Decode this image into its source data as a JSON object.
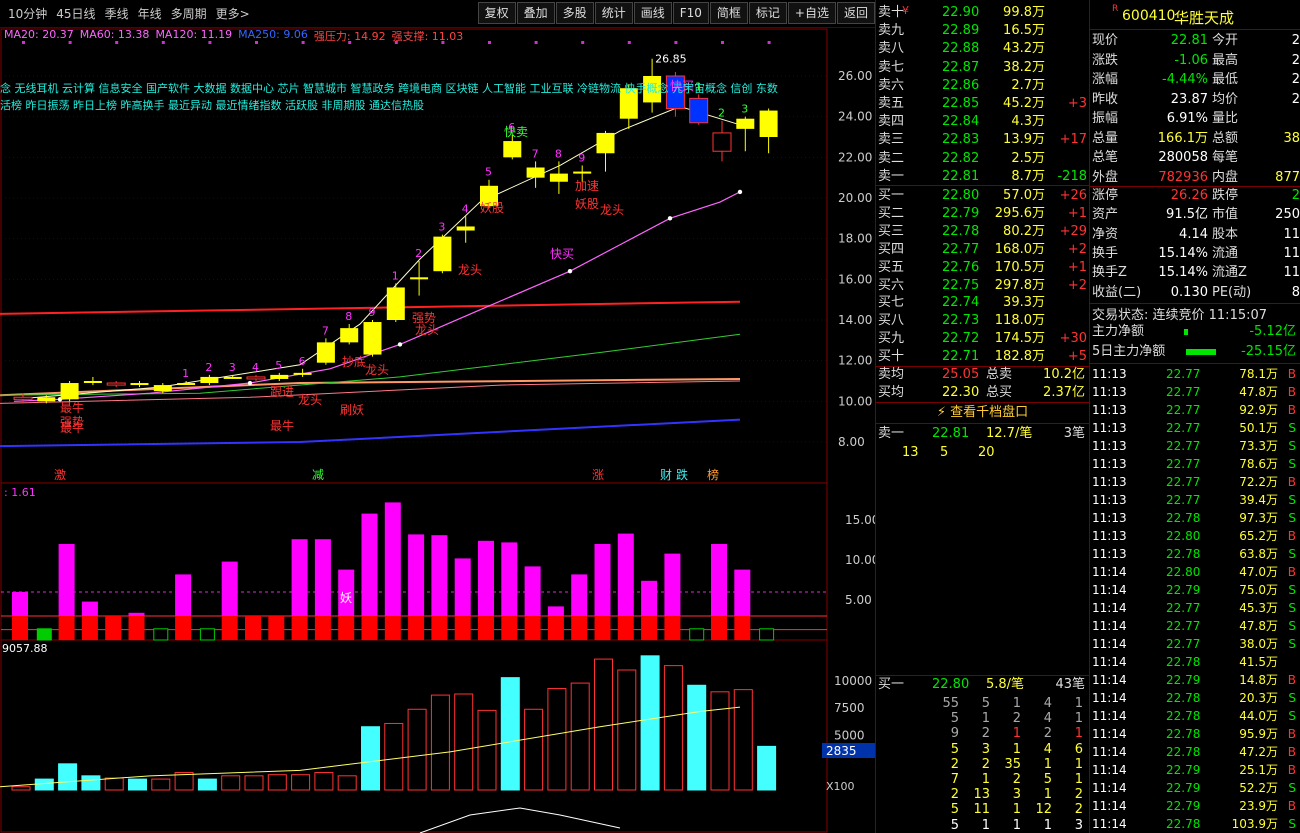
{
  "toolbar": {
    "periods": [
      "10分钟",
      "45日线",
      "季线",
      "年线",
      "多周期",
      "更多>"
    ],
    "buttons": [
      "复权",
      "叠加",
      "多股",
      "统计",
      "画线",
      "F10",
      "简框",
      "标记",
      "+自选",
      "返回"
    ]
  },
  "ma_legend": [
    {
      "t": "MA20: 20.37",
      "c": "#ff66ff"
    },
    {
      "t": "MA60: 13.38",
      "c": "#ff66ff"
    },
    {
      "t": "MA120: 11.19",
      "c": "#ff66ff"
    },
    {
      "t": "MA250: 9.06",
      "c": "#3366ff"
    },
    {
      "t": "强压力: 14.92",
      "c": "#ff4444"
    },
    {
      "t": "强支撑: 11.03",
      "c": "#ff4444"
    }
  ],
  "concepts_1": "念 无线耳机 云计算 信息安全 国产软件 大数据 数据中心 芯片 智慧城市 智慧政务 跨境电商 区块链 人工智能 工业互联 冷链物流 快手概念 元宇宙概念 信创 东数",
  "concepts_2": "活榜 昨日振荡 昨日上榜 昨高换手 最近异动 最近情绪指数 活跃股 非周期股 通达信热股",
  "price_axis": [
    "26.00",
    "24.00",
    "22.00",
    "20.00",
    "18.00",
    "16.00",
    "14.00",
    "12.00",
    "10.00",
    "8.00"
  ],
  "high_label": "26.85",
  "annotations": [
    {
      "t": "快卖",
      "c": "#3f3"
    },
    {
      "t": "快买",
      "c": "#f3f"
    },
    {
      "t": "妖股",
      "c": "#f33"
    },
    {
      "t": "加速",
      "c": "#f33"
    },
    {
      "t": "妖股",
      "c": "#f33"
    },
    {
      "t": "龙头",
      "c": "#f33"
    },
    {
      "t": "龙头",
      "c": "#f33"
    },
    {
      "t": "强势",
      "c": "#f33"
    },
    {
      "t": "龙头",
      "c": "#f33"
    },
    {
      "t": "抄底",
      "c": "#f33"
    },
    {
      "t": "龙头",
      "c": "#f33"
    },
    {
      "t": "跟进",
      "c": "#f33"
    },
    {
      "t": "龙头",
      "c": "#f33"
    },
    {
      "t": "刷妖",
      "c": "#f33"
    },
    {
      "t": "最牛",
      "c": "#f33"
    },
    {
      "t": "最牛",
      "c": "#f33"
    },
    {
      "t": "强势",
      "c": "#f33"
    },
    {
      "t": "最牛",
      "c": "#f33"
    },
    {
      "t": "快买",
      "c": "#f3f"
    }
  ],
  "events": [
    {
      "t": "激",
      "c": "#f33"
    },
    {
      "t": "减",
      "c": "#3f3"
    },
    {
      "t": "涨",
      "c": "#f33"
    },
    {
      "t": "财",
      "c": "#4ee"
    },
    {
      "t": "跌",
      "c": "#4ee"
    },
    {
      "t": "榜",
      "c": "#f93"
    }
  ],
  "counts": [
    "1",
    "2",
    "3",
    "4",
    "5",
    "6",
    "7",
    "8",
    "9",
    "1",
    "2",
    "3",
    "4",
    "5",
    "6",
    "7",
    "8",
    "9",
    "1",
    "2",
    "3"
  ],
  "ind1_label": ": 1.61",
  "ind1_axis": [
    "15.00",
    "10.00",
    "5.00"
  ],
  "ind1_mark": "妖",
  "ind2_label": "9057.88",
  "ind2_axis": [
    "10000",
    "7500",
    "5000"
  ],
  "ind2_current": "2835",
  "ind2_unit": "X100",
  "candles": [
    {
      "o": 10.2,
      "c": 10.1,
      "h": 10.4,
      "l": 9.9
    },
    {
      "o": 10.0,
      "c": 10.2,
      "h": 10.3,
      "l": 9.9
    },
    {
      "o": 10.1,
      "c": 10.9,
      "h": 11.0,
      "l": 10.0
    },
    {
      "o": 11.0,
      "c": 11.0,
      "h": 11.2,
      "l": 10.8
    },
    {
      "o": 10.9,
      "c": 10.8,
      "h": 11.0,
      "l": 10.7
    },
    {
      "o": 10.8,
      "c": 10.9,
      "h": 11.0,
      "l": 10.7
    },
    {
      "o": 10.5,
      "c": 10.8,
      "h": 10.9,
      "l": 10.4
    },
    {
      "o": 10.9,
      "c": 10.9,
      "h": 11.0,
      "l": 10.8
    },
    {
      "o": 10.9,
      "c": 11.2,
      "h": 11.3,
      "l": 10.8
    },
    {
      "o": 11.2,
      "c": 11.2,
      "h": 11.3,
      "l": 11.1
    },
    {
      "o": 11.2,
      "c": 11.1,
      "h": 11.3,
      "l": 11.0
    },
    {
      "o": 11.1,
      "c": 11.3,
      "h": 11.4,
      "l": 11.0
    },
    {
      "o": 11.4,
      "c": 11.4,
      "h": 11.6,
      "l": 11.2
    },
    {
      "o": 11.9,
      "c": 12.9,
      "h": 13.1,
      "l": 11.8
    },
    {
      "o": 12.9,
      "c": 13.6,
      "h": 13.8,
      "l": 12.8
    },
    {
      "o": 12.3,
      "c": 13.9,
      "h": 14.0,
      "l": 12.2
    },
    {
      "o": 14.0,
      "c": 15.6,
      "h": 15.8,
      "l": 13.9
    },
    {
      "o": 16.0,
      "c": 16.1,
      "h": 16.9,
      "l": 15.2
    },
    {
      "o": 16.4,
      "c": 18.1,
      "h": 18.2,
      "l": 16.3
    },
    {
      "o": 18.4,
      "c": 18.6,
      "h": 19.1,
      "l": 17.8
    },
    {
      "o": 19.6,
      "c": 20.6,
      "h": 20.9,
      "l": 19.5
    },
    {
      "o": 22.0,
      "c": 22.8,
      "h": 23.1,
      "l": 21.9
    },
    {
      "o": 21.0,
      "c": 21.5,
      "h": 21.8,
      "l": 20.5
    },
    {
      "o": 20.8,
      "c": 21.2,
      "h": 21.8,
      "l": 20.2
    },
    {
      "o": 21.2,
      "c": 21.3,
      "h": 21.6,
      "l": 20.8
    },
    {
      "o": 22.2,
      "c": 23.2,
      "h": 23.3,
      "l": 21.3
    },
    {
      "o": 23.9,
      "c": 25.4,
      "h": 25.6,
      "l": 23.4
    },
    {
      "o": 24.7,
      "c": 26.0,
      "h": 26.85,
      "l": 24.2
    },
    {
      "o": 26.0,
      "c": 24.4,
      "h": 26.2,
      "l": 24.0
    },
    {
      "o": 24.9,
      "c": 23.7,
      "h": 25.1,
      "l": 23.6
    },
    {
      "o": 23.2,
      "c": 22.3,
      "h": 23.8,
      "l": 21.8
    },
    {
      "o": 23.4,
      "c": 23.9,
      "h": 24.0,
      "l": 22.3
    },
    {
      "o": 23.0,
      "c": 24.3,
      "h": 24.4,
      "l": 22.2
    }
  ],
  "ind1": [
    {
      "v": 6,
      "z": 3
    },
    {
      "v": 3,
      "z": 1
    },
    {
      "v": 12,
      "z": 3
    },
    {
      "v": 4.8,
      "z": 3
    },
    {
      "v": 2.5,
      "z": 3
    },
    {
      "v": 3.4,
      "z": 3
    },
    {
      "v": 1.5,
      "z": 1
    },
    {
      "v": 8.2,
      "z": 3
    },
    {
      "v": 2.3,
      "z": 1
    },
    {
      "v": 9.8,
      "z": 3
    },
    {
      "v": 2.8,
      "z": 3
    },
    {
      "v": 1.5,
      "z": 3
    },
    {
      "v": 12.6,
      "z": 3
    },
    {
      "v": 12.6,
      "z": 3
    },
    {
      "v": 8.8,
      "z": 3
    },
    {
      "v": 15.8,
      "z": 3
    },
    {
      "v": 17.2,
      "z": 3
    },
    {
      "v": 13.2,
      "z": 3
    },
    {
      "v": 13.1,
      "z": 3
    },
    {
      "v": 10.2,
      "z": 3
    },
    {
      "v": 12.4,
      "z": 3
    },
    {
      "v": 12.2,
      "z": 3
    },
    {
      "v": 9.2,
      "z": 3
    },
    {
      "v": 4.2,
      "z": 3
    },
    {
      "v": 8.2,
      "z": 3
    },
    {
      "v": 12.0,
      "z": 3
    },
    {
      "v": 13.3,
      "z": 3
    },
    {
      "v": 7.4,
      "z": 3
    },
    {
      "v": 10.8,
      "z": 3
    },
    {
      "v": 1.8,
      "z": 1
    },
    {
      "v": 12.0,
      "z": 3
    },
    {
      "v": 8.8,
      "z": 3
    },
    {
      "v": 1.5,
      "z": 1
    }
  ],
  "ind2": [
    {
      "v": 300,
      "f": 0
    },
    {
      "v": 1000,
      "f": 1
    },
    {
      "v": 2400,
      "f": 1
    },
    {
      "v": 1300,
      "f": 1
    },
    {
      "v": 1100,
      "f": 0
    },
    {
      "v": 1000,
      "f": 1
    },
    {
      "v": 1000,
      "f": 0
    },
    {
      "v": 1600,
      "f": 0
    },
    {
      "v": 1000,
      "f": 1
    },
    {
      "v": 1300,
      "f": 0
    },
    {
      "v": 1300,
      "f": 0
    },
    {
      "v": 1400,
      "f": 0
    },
    {
      "v": 1400,
      "f": 0
    },
    {
      "v": 1600,
      "f": 0
    },
    {
      "v": 1300,
      "f": 0
    },
    {
      "v": 5800,
      "f": 1
    },
    {
      "v": 6100,
      "f": 0
    },
    {
      "v": 7400,
      "f": 0
    },
    {
      "v": 8700,
      "f": 0
    },
    {
      "v": 8800,
      "f": 0
    },
    {
      "v": 7300,
      "f": 0
    },
    {
      "v": 10300,
      "f": 1
    },
    {
      "v": 7400,
      "f": 0
    },
    {
      "v": 9300,
      "f": 0
    },
    {
      "v": 9800,
      "f": 0
    },
    {
      "v": 12000,
      "f": 0
    },
    {
      "v": 11000,
      "f": 0
    },
    {
      "v": 12300,
      "f": 1
    },
    {
      "v": 11400,
      "f": 0
    },
    {
      "v": 9600,
      "f": 1
    },
    {
      "v": 9000,
      "f": 0
    },
    {
      "v": 9200,
      "f": 0
    },
    {
      "v": 4000,
      "f": 1
    }
  ],
  "sells": [
    {
      "lb": "卖十",
      "p": "22.90",
      "v": "99.8万",
      "d": ""
    },
    {
      "lb": "卖九",
      "p": "22.89",
      "v": "16.5万",
      "d": ""
    },
    {
      "lb": "卖八",
      "p": "22.88",
      "v": "43.2万",
      "d": ""
    },
    {
      "lb": "卖七",
      "p": "22.87",
      "v": "38.2万",
      "d": ""
    },
    {
      "lb": "卖六",
      "p": "22.86",
      "v": "2.7万",
      "d": ""
    },
    {
      "lb": "卖五",
      "p": "22.85",
      "v": "45.2万",
      "d": "+3"
    },
    {
      "lb": "卖四",
      "p": "22.84",
      "v": "4.3万",
      "d": ""
    },
    {
      "lb": "卖三",
      "p": "22.83",
      "v": "13.9万",
      "d": "+17"
    },
    {
      "lb": "卖二",
      "p": "22.82",
      "v": "2.5万",
      "d": ""
    },
    {
      "lb": "卖一",
      "p": "22.81",
      "v": "8.7万",
      "d": "-218"
    }
  ],
  "sell10_mark": "¥",
  "buys": [
    {
      "lb": "买一",
      "p": "22.80",
      "v": "57.0万",
      "d": "+26"
    },
    {
      "lb": "买二",
      "p": "22.79",
      "v": "295.6万",
      "d": "+1"
    },
    {
      "lb": "买三",
      "p": "22.78",
      "v": "80.2万",
      "d": "+29"
    },
    {
      "lb": "买四",
      "p": "22.77",
      "v": "168.0万",
      "d": "+2"
    },
    {
      "lb": "买五",
      "p": "22.76",
      "v": "170.5万",
      "d": "+1"
    },
    {
      "lb": "买六",
      "p": "22.75",
      "v": "297.8万",
      "d": "+2"
    },
    {
      "lb": "买七",
      "p": "22.74",
      "v": "39.3万",
      "d": ""
    },
    {
      "lb": "买八",
      "p": "22.73",
      "v": "118.0万",
      "d": ""
    },
    {
      "lb": "买九",
      "p": "22.72",
      "v": "174.5万",
      "d": "+30"
    },
    {
      "lb": "买十",
      "p": "22.71",
      "v": "182.8万",
      "d": "+5"
    }
  ],
  "avg_sell": {
    "lb": "卖均",
    "p": "25.05",
    "tl": "总卖",
    "tv": "10.2亿"
  },
  "avg_buy": {
    "lb": "买均",
    "p": "22.30",
    "tl": "总买",
    "tv": "2.37亿"
  },
  "qiandang": "查看千档盘口",
  "sell1_detail": {
    "lb": "卖一",
    "p": "22.81",
    "v": "12.7/笔",
    "n": "3笔",
    "q": [
      "13",
      "5",
      "20"
    ]
  },
  "buy1_detail": {
    "lb": "买一",
    "p": "22.80",
    "v": "5.8/笔",
    "n": "43笔"
  },
  "buy_queue": [
    [
      "55",
      "5",
      "1",
      "4",
      "1"
    ],
    [
      "5",
      "1",
      "2",
      "4",
      "1"
    ],
    [
      "9",
      "2",
      "1",
      "2",
      "1"
    ],
    [
      "5",
      "3",
      "1",
      "4",
      "6"
    ],
    [
      "2",
      "2",
      "35",
      "1",
      "1"
    ],
    [
      "7",
      "1",
      "2",
      "5",
      "1"
    ],
    [
      "2",
      "13",
      "3",
      "1",
      "2"
    ],
    [
      "5",
      "11",
      "1",
      "12",
      "2"
    ],
    [
      "5",
      "1",
      "1",
      "1",
      "3"
    ]
  ],
  "stock": {
    "code": "600410",
    "name": "华胜天成",
    "tag": "R"
  },
  "quote": [
    [
      "现价",
      "22.81",
      "今开",
      "2"
    ],
    [
      "涨跌",
      "-1.06",
      "最高",
      "2"
    ],
    [
      "涨幅",
      "-4.44%",
      "最低",
      "2"
    ],
    [
      "昨收",
      "23.87",
      "均价",
      "2"
    ],
    [
      "振幅",
      "6.91%",
      "量比",
      ""
    ],
    [
      "总量",
      "166.1万",
      "总额",
      "38"
    ],
    [
      "总笔",
      "280058",
      "每笔",
      ""
    ],
    [
      "外盘",
      "782936",
      "内盘",
      "877"
    ]
  ],
  "quote2": [
    [
      "涨停",
      "26.26",
      "跌停",
      "2"
    ],
    [
      "资产",
      "91.5亿",
      "市值",
      "250"
    ],
    [
      "净资",
      "4.14",
      "股本",
      "11"
    ],
    [
      "换手",
      "15.14%",
      "流通",
      "11"
    ],
    [
      "换手Z",
      "15.14%",
      "流通Z",
      "11"
    ],
    [
      "收益(二)",
      "0.130",
      "PE(动)",
      "8"
    ]
  ],
  "trade_state": "交易状态: 连续竞价 11:15:07",
  "main_flow": [
    {
      "lb": "主力净额",
      "v": "-5.12亿"
    },
    {
      "lb": "5日主力净额",
      "v": "-25.15亿"
    }
  ],
  "ticks": [
    [
      "11:13",
      "22.77",
      "78.1万",
      "B"
    ],
    [
      "11:13",
      "22.77",
      "47.8万",
      "B"
    ],
    [
      "11:13",
      "22.77",
      "92.9万",
      "B"
    ],
    [
      "11:13",
      "22.77",
      "50.1万",
      "S"
    ],
    [
      "11:13",
      "22.77",
      "73.3万",
      "S"
    ],
    [
      "11:13",
      "22.77",
      "78.6万",
      "S"
    ],
    [
      "11:13",
      "22.77",
      "72.2万",
      "B"
    ],
    [
      "11:13",
      "22.77",
      "39.4万",
      "S"
    ],
    [
      "11:13",
      "22.78",
      "97.3万",
      "S"
    ],
    [
      "11:13",
      "22.80",
      "65.2万",
      "B"
    ],
    [
      "11:13",
      "22.78",
      "63.8万",
      "S"
    ],
    [
      "11:14",
      "22.80",
      "47.0万",
      "B"
    ],
    [
      "11:14",
      "22.79",
      "75.0万",
      "S"
    ],
    [
      "11:14",
      "22.77",
      "45.3万",
      "S"
    ],
    [
      "11:14",
      "22.77",
      "47.8万",
      "S"
    ],
    [
      "11:14",
      "22.77",
      "38.0万",
      "S"
    ],
    [
      "11:14",
      "22.78",
      "41.5万",
      ""
    ],
    [
      "11:14",
      "22.79",
      "14.8万",
      "B"
    ],
    [
      "11:14",
      "22.78",
      "20.3万",
      "S"
    ],
    [
      "11:14",
      "22.78",
      "44.0万",
      "S"
    ],
    [
      "11:14",
      "22.78",
      "95.9万",
      "B"
    ],
    [
      "11:14",
      "22.78",
      "47.2万",
      "B"
    ],
    [
      "11:14",
      "22.79",
      "25.1万",
      "B"
    ],
    [
      "11:14",
      "22.79",
      "52.2万",
      "S"
    ],
    [
      "11:14",
      "22.79",
      "23.9万",
      "B"
    ],
    [
      "11:14",
      "22.78",
      "103.9万",
      "S"
    ]
  ],
  "colors": {
    "up": "#ffff00",
    "down": "#0033ff",
    "red": "#ff3333",
    "green": "#00e600",
    "ma20": "#ff66ff",
    "ma60": "#33cc33",
    "ma120": "#ff9966",
    "ma250": "#3333ff",
    "pressure": "#ff2222"
  }
}
